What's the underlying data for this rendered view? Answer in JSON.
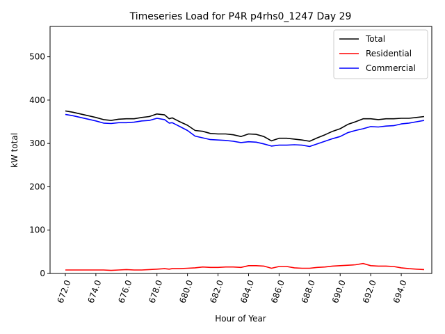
{
  "chart_data": {
    "type": "line",
    "title": "Timeseries Load for P4R p4rhs0_1247  Day 29",
    "xlabel": "Hour of Year",
    "ylabel": "kW total",
    "xlim": [
      671.0,
      696.0
    ],
    "ylim": [
      0,
      570
    ],
    "x_ticks": [
      672.0,
      674.0,
      676.0,
      678.0,
      680.0,
      682.0,
      684.0,
      686.0,
      688.0,
      690.0,
      692.0,
      694.0
    ],
    "x_tick_labels": [
      "672.0",
      "674.0",
      "676.0",
      "678.0",
      "680.0",
      "682.0",
      "684.0",
      "686.0",
      "688.0",
      "690.0",
      "692.0",
      "694.0"
    ],
    "y_ticks": [
      0,
      100,
      200,
      300,
      400,
      500
    ],
    "y_tick_labels": [
      "0",
      "100",
      "200",
      "300",
      "400",
      "500"
    ],
    "grid": false,
    "legend_position": "top-right",
    "x": [
      672.0,
      672.5,
      673.0,
      673.5,
      674.0,
      674.5,
      675.0,
      675.5,
      676.0,
      676.5,
      677.0,
      677.5,
      678.0,
      678.5,
      678.8,
      679.0,
      679.5,
      680.0,
      680.5,
      681.0,
      681.5,
      682.0,
      682.5,
      683.0,
      683.5,
      684.0,
      684.5,
      685.0,
      685.5,
      686.0,
      686.5,
      687.0,
      687.5,
      688.0,
      688.5,
      689.0,
      689.5,
      690.0,
      690.5,
      691.0,
      691.5,
      692.0,
      692.5,
      693.0,
      693.5,
      694.0,
      694.5,
      695.0,
      695.5
    ],
    "series": [
      {
        "name": "Total",
        "color": "#000000",
        "values": [
          375,
          372,
          368,
          364,
          360,
          355,
          353,
          356,
          357,
          357,
          360,
          362,
          368,
          366,
          357,
          359,
          350,
          342,
          330,
          328,
          323,
          322,
          322,
          320,
          316,
          322,
          321,
          316,
          306,
          312,
          312,
          310,
          308,
          305,
          313,
          320,
          328,
          334,
          344,
          350,
          357,
          357,
          355,
          357,
          357,
          358,
          358,
          360,
          362
        ]
      },
      {
        "name": "Residential",
        "color": "#ff0000",
        "values": [
          8,
          8,
          8,
          8,
          8,
          8,
          7,
          8,
          9,
          8,
          8,
          9,
          10,
          11,
          10,
          11,
          11,
          12,
          13,
          15,
          14,
          14,
          15,
          15,
          14,
          18,
          18,
          17,
          12,
          16,
          16,
          13,
          12,
          12,
          14,
          15,
          17,
          18,
          19,
          20,
          23,
          18,
          17,
          17,
          16,
          13,
          11,
          10,
          9
        ]
      },
      {
        "name": "Commercial",
        "color": "#0000ff",
        "values": [
          367,
          364,
          360,
          356,
          352,
          347,
          346,
          348,
          348,
          349,
          352,
          353,
          358,
          355,
          347,
          348,
          339,
          330,
          317,
          313,
          309,
          308,
          307,
          305,
          302,
          304,
          303,
          299,
          294,
          296,
          296,
          297,
          296,
          293,
          299,
          305,
          311,
          316,
          325,
          330,
          334,
          339,
          338,
          340,
          341,
          345,
          347,
          350,
          353
        ]
      }
    ]
  }
}
